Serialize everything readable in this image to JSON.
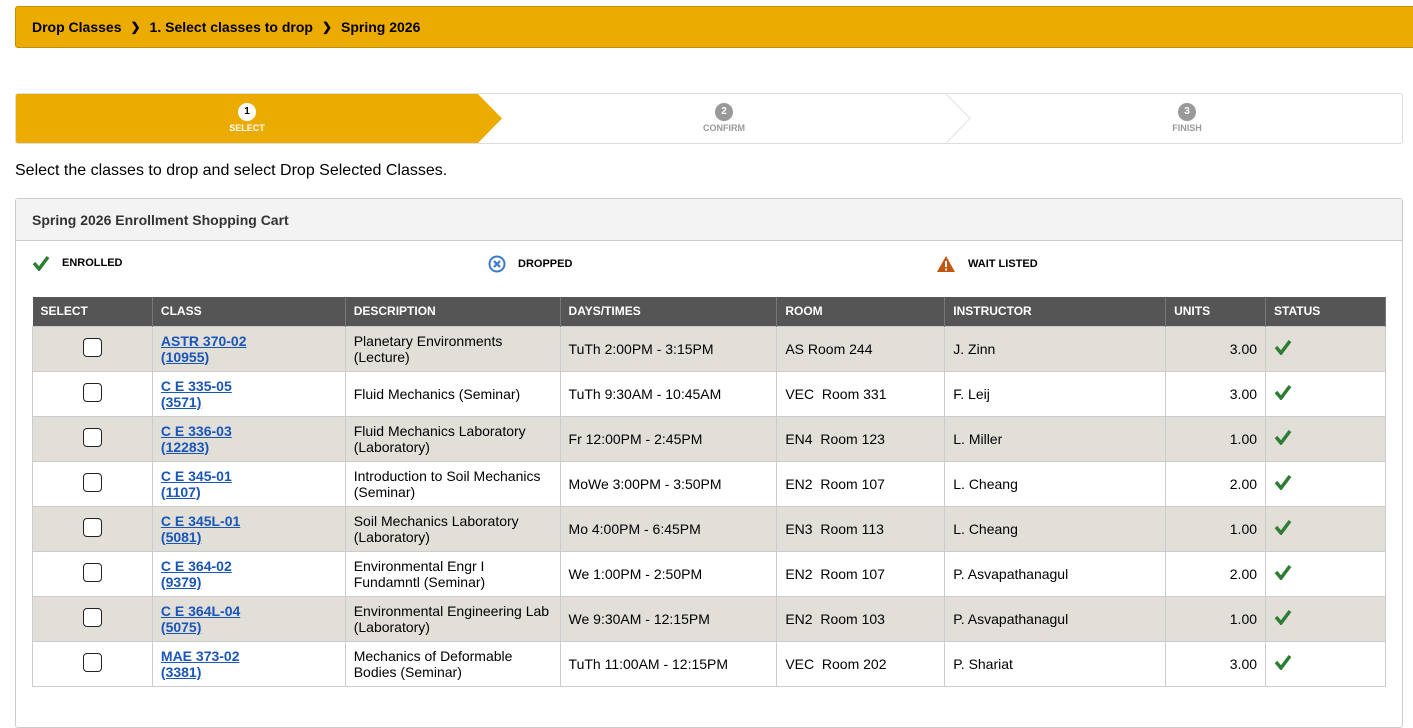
{
  "breadcrumb": [
    "Drop Classes",
    "1.  Select classes to drop",
    "Spring 2026"
  ],
  "steps": [
    {
      "num": "1",
      "label": "SELECT"
    },
    {
      "num": "2",
      "label": "CONFIRM"
    },
    {
      "num": "3",
      "label": "FINISH"
    }
  ],
  "instruction": "Select the classes to drop and select Drop Selected Classes.",
  "panel_title": "Spring 2026 Enrollment Shopping Cart",
  "legend": {
    "enrolled": "ENROLLED",
    "dropped": "DROPPED",
    "waitlisted": "WAIT LISTED"
  },
  "colors": {
    "accent": "#ecab00",
    "enrolled": "#2e7d32",
    "dropped": "#3a7bc8",
    "waitlisted": "#c0560f",
    "header": "#555555"
  },
  "columns": [
    "SELECT",
    "CLASS",
    "DESCRIPTION",
    "DAYS/TIMES",
    "ROOM",
    "INSTRUCTOR",
    "UNITS",
    "STATUS"
  ],
  "rows": [
    {
      "class": "ASTR 370-02",
      "id": "(10955)",
      "desc1": "Planetary Environments",
      "desc2": "(Lecture)",
      "time": "TuTh 2:00PM - 3:15PM",
      "room": "AS Room 244",
      "instructor": "J. Zinn",
      "units": "3.00",
      "status": "enrolled"
    },
    {
      "class": "C E 335-05",
      "id": "(3571)",
      "desc1": "Fluid Mechanics (Seminar)",
      "desc2": "",
      "time": "TuTh 9:30AM - 10:45AM",
      "room": "VEC  Room 331",
      "instructor": "F. Leij",
      "units": "3.00",
      "status": "enrolled"
    },
    {
      "class": "C E 336-03",
      "id": "(12283)",
      "desc1": "Fluid Mechanics Laboratory",
      "desc2": "(Laboratory)",
      "time": "Fr 12:00PM - 2:45PM",
      "room": "EN4  Room 123",
      "instructor": "L. Miller",
      "units": "1.00",
      "status": "enrolled"
    },
    {
      "class": "C E 345-01",
      "id": "(1107)",
      "desc1": "Introduction to Soil Mechanics",
      "desc2": "(Seminar)",
      "time": "MoWe 3:00PM - 3:50PM",
      "room": "EN2  Room 107",
      "instructor": "L. Cheang",
      "units": "2.00",
      "status": "enrolled"
    },
    {
      "class": "C E 345L-01",
      "id": "(5081)",
      "desc1": "Soil Mechanics Laboratory",
      "desc2": "(Laboratory)",
      "time": "Mo 4:00PM - 6:45PM",
      "room": "EN3  Room 113",
      "instructor": "L. Cheang",
      "units": "1.00",
      "status": "enrolled"
    },
    {
      "class": "C E 364-02",
      "id": "(9379)",
      "desc1": "Environmental Engr I",
      "desc2": "Fundamntl (Seminar)",
      "time": "We 1:00PM - 2:50PM",
      "room": "EN2  Room 107",
      "instructor": "P. Asvapathanagul",
      "units": "2.00",
      "status": "enrolled"
    },
    {
      "class": "C E 364L-04",
      "id": "(5075)",
      "desc1": "Environmental Engineering Lab",
      "desc2": "(Laboratory)",
      "time": "We 9:30AM - 12:15PM",
      "room": "EN2  Room 103",
      "instructor": "P. Asvapathanagul",
      "units": "1.00",
      "status": "enrolled"
    },
    {
      "class": "MAE 373-02",
      "id": "(3381)",
      "desc1": "Mechanics of Deformable",
      "desc2": "Bodies (Seminar)",
      "time": "TuTh 11:00AM - 12:15PM",
      "room": "VEC  Room 202",
      "instructor": "P. Shariat",
      "units": "3.00",
      "status": "enrolled"
    }
  ]
}
